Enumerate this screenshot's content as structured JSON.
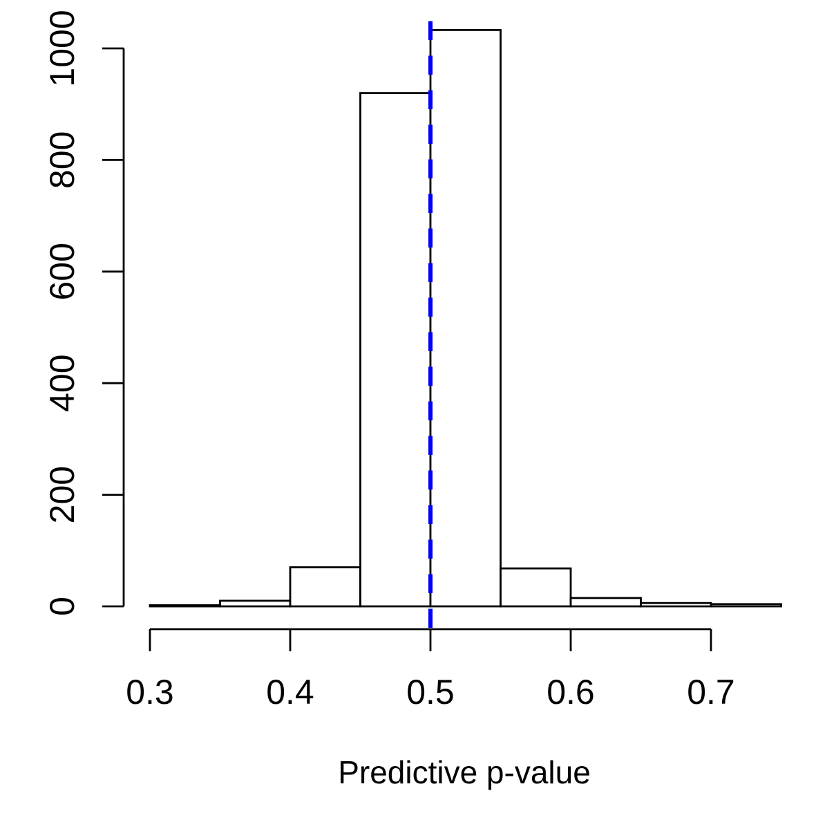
{
  "chart_data": {
    "type": "bar",
    "subtype": "histogram",
    "title": "",
    "xlabel": "Predictive p-value",
    "ylabel": "",
    "breaks": [
      0.3,
      0.35,
      0.4,
      0.45,
      0.5,
      0.55,
      0.6,
      0.65,
      0.7,
      0.75
    ],
    "counts": [
      2,
      10,
      70,
      920,
      1033,
      68,
      15,
      6,
      4
    ],
    "x_tick_labels": [
      "0.3",
      "0.4",
      "0.5",
      "0.6",
      "0.7"
    ],
    "x_tick_values": [
      0.3,
      0.4,
      0.5,
      0.6,
      0.7
    ],
    "y_tick_labels": [
      "0",
      "200",
      "400",
      "600",
      "800",
      "1000"
    ],
    "y_tick_values": [
      0,
      200,
      400,
      600,
      800,
      1000
    ],
    "xlim": [
      0.3,
      0.75
    ],
    "ylim": [
      0,
      1033
    ],
    "grid": "off",
    "legend": "none",
    "background": "#ffffff",
    "bar_fill": "#ffffff",
    "bar_stroke": "#000000",
    "axis_color": "#000000",
    "text_color": "#000000",
    "reference_line": {
      "orientation": "vertical",
      "x": 0.5,
      "color": "#0000ff",
      "style": "dashed"
    }
  }
}
